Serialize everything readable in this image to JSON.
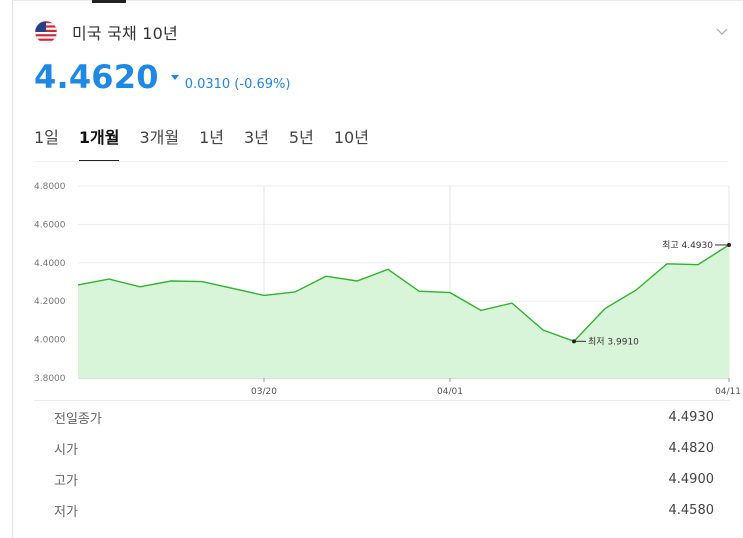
{
  "header": {
    "flag_icon": "us-flag-icon",
    "title": "미국 국채 10년",
    "expand_icon": "chevron-down-icon"
  },
  "quote": {
    "price": "4.4620",
    "direction": "down",
    "change": "0.0310 (-0.69%)",
    "color": "#1e88e5"
  },
  "tabs": [
    {
      "label": "1일",
      "active": false
    },
    {
      "label": "1개월",
      "active": true
    },
    {
      "label": "3개월",
      "active": false
    },
    {
      "label": "1년",
      "active": false
    },
    {
      "label": "3년",
      "active": false
    },
    {
      "label": "5년",
      "active": false
    },
    {
      "label": "10년",
      "active": false
    }
  ],
  "chart_data": {
    "type": "area",
    "y_ticks": [
      "4.8000",
      "4.6000",
      "4.4000",
      "4.2000",
      "4.0000",
      "3.8000"
    ],
    "ylim": [
      3.8,
      4.8
    ],
    "x_ticks": [
      "03/20",
      "04/01",
      "04/11"
    ],
    "values": [
      4.285,
      4.315,
      4.275,
      4.305,
      4.302,
      4.23,
      4.248,
      4.33,
      4.305,
      4.366,
      4.252,
      4.245,
      4.152,
      4.19,
      4.05,
      3.991,
      4.162,
      4.258,
      4.395,
      4.39,
      4.493
    ],
    "x_index": [
      0,
      1,
      2,
      3,
      4,
      6,
      7,
      8,
      9,
      10,
      11,
      12,
      13,
      14,
      15,
      16,
      17,
      18,
      19,
      20,
      21
    ],
    "x_tick_index": [
      6,
      12,
      21
    ],
    "line_color": "#2db52d",
    "fill_color": "#d9f5d9",
    "high": {
      "label": "최고 4.4930",
      "value": 4.493,
      "index": 21
    },
    "low": {
      "label": "최저 3.9910",
      "value": 3.991,
      "index": 16
    }
  },
  "stats": [
    {
      "label": "전일종가",
      "value": "4.4930"
    },
    {
      "label": "시가",
      "value": "4.4820"
    },
    {
      "label": "고가",
      "value": "4.4900"
    },
    {
      "label": "저가",
      "value": "4.4580"
    }
  ]
}
